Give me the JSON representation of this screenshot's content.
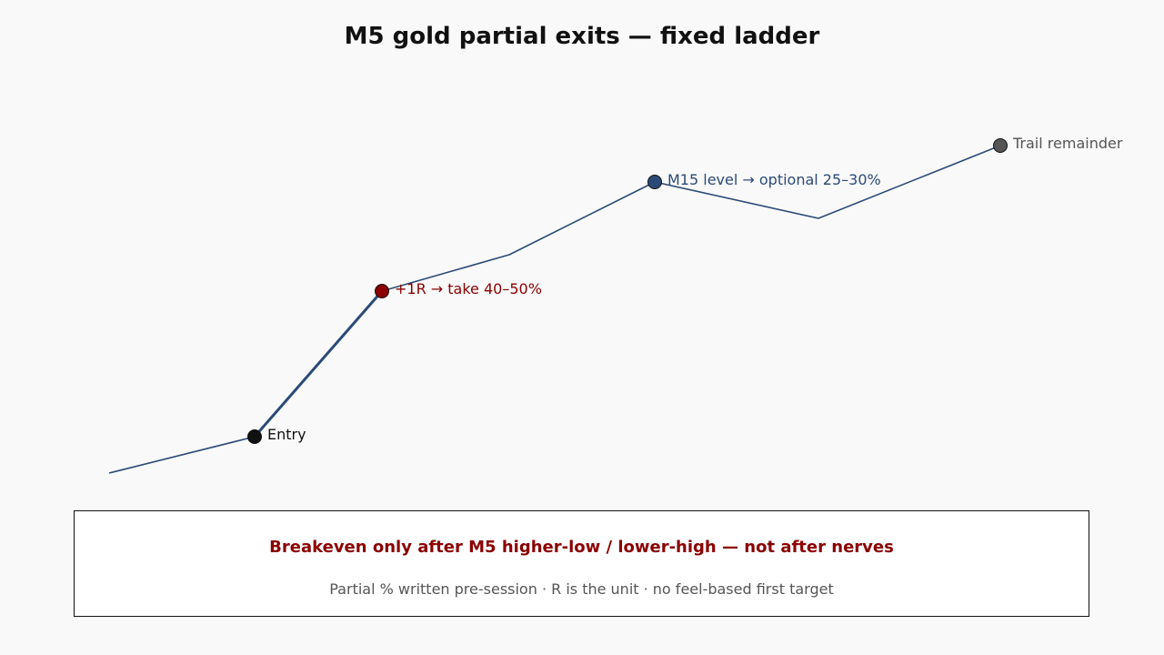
{
  "title": "M5 gold partial exits — fixed ladder",
  "colors": {
    "background": "#f9f9f9",
    "title": "#111111",
    "path": "#2b4a78",
    "entry": "#111111",
    "first_target": "#8b0000",
    "m15_level": "#2b4a78",
    "trail": "#555555",
    "box_border": "#111111",
    "note_headline": "#8b0000",
    "note_sub": "#555555"
  },
  "markers": [
    {
      "id": "entry",
      "label": "Entry"
    },
    {
      "id": "first_target",
      "label": "+1R → take 40–50%"
    },
    {
      "id": "m15_level",
      "label": "M15 level → optional 25–30%"
    },
    {
      "id": "trail",
      "label": "Trail remainder"
    }
  ],
  "note": {
    "headline": "Breakeven only after M5 higher-low / lower-high — not after nerves",
    "subline": "Partial % written pre-session · R is the unit · no feel-based first target"
  }
}
